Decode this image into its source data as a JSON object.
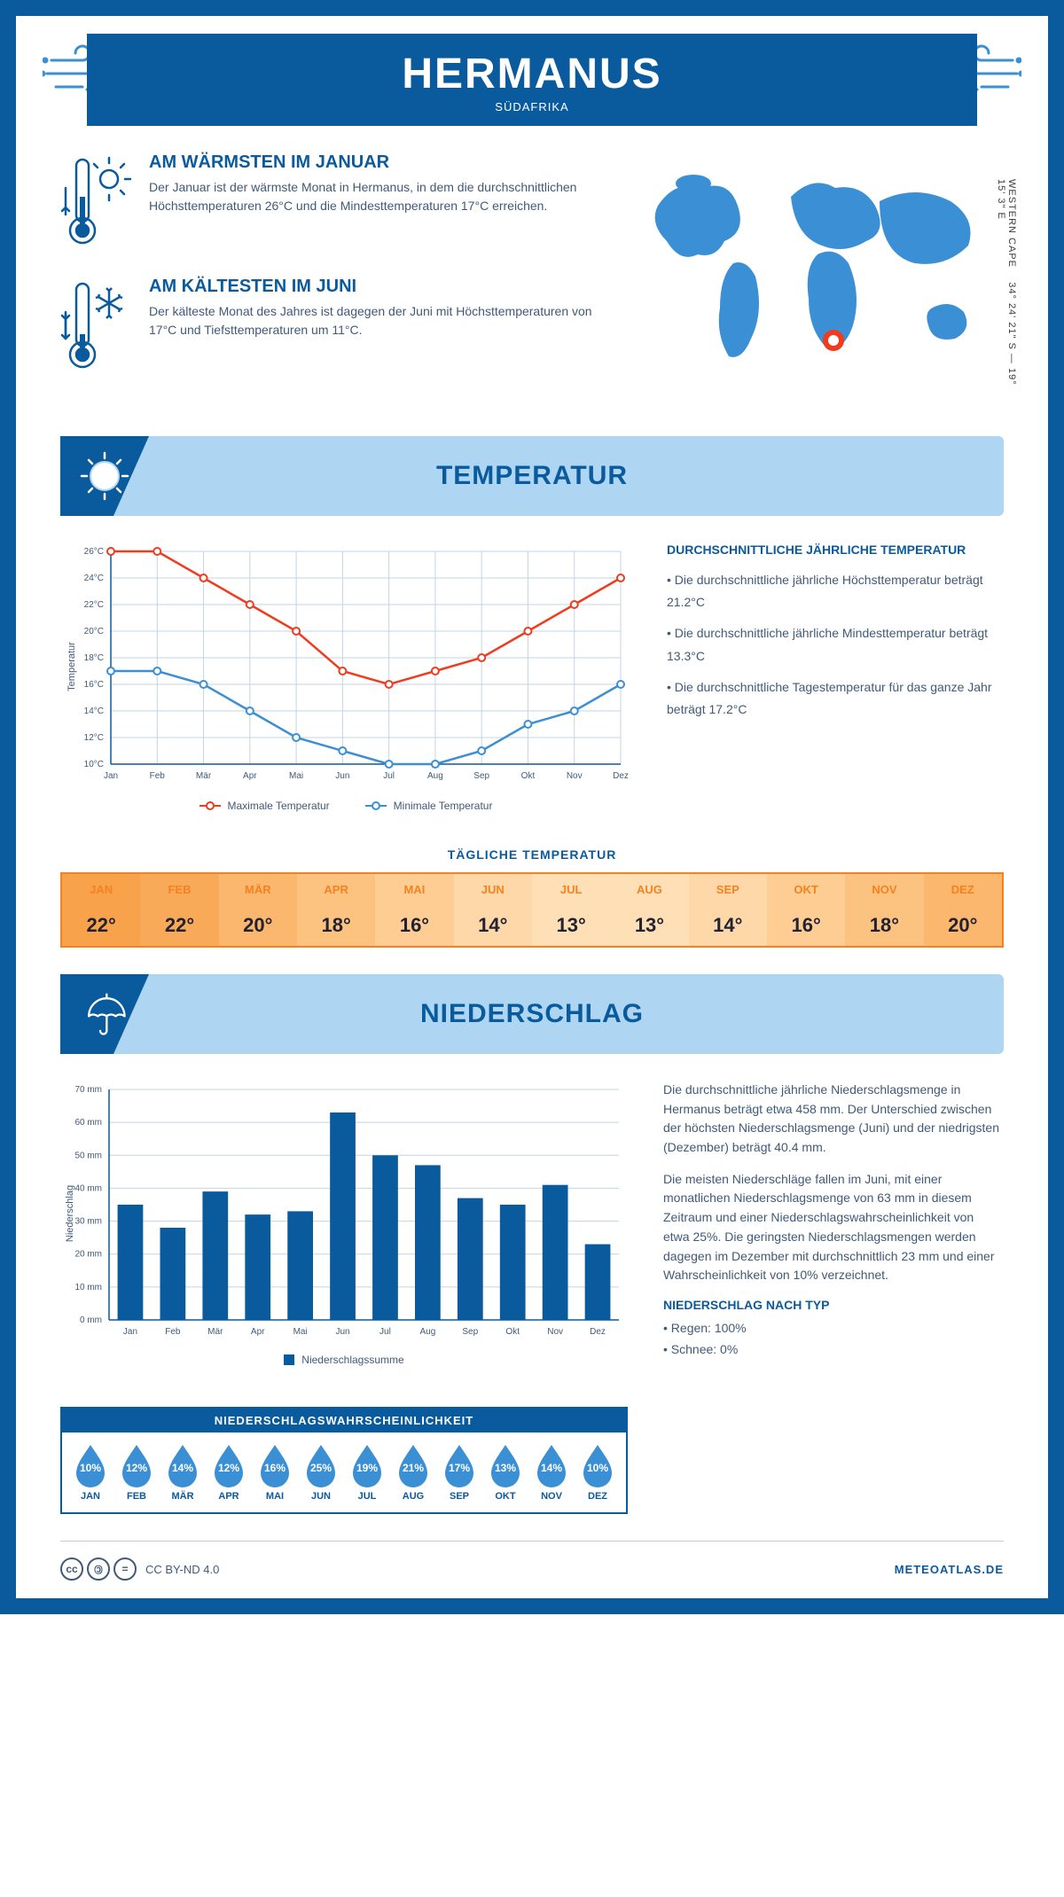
{
  "header": {
    "title": "HERMANUS",
    "subtitle": "SÜDAFRIKA"
  },
  "coords": "34° 24' 21\" S — 19° 15' 3\" E",
  "region": "WESTERN CAPE",
  "facts": {
    "warm": {
      "title": "AM WÄRMSTEN IM JANUAR",
      "text": "Der Januar ist der wärmste Monat in Hermanus, in dem die durchschnittlichen Höchsttemperaturen 26°C und die Mindesttemperaturen 17°C erreichen."
    },
    "cold": {
      "title": "AM KÄLTESTEN IM JUNI",
      "text": "Der kälteste Monat des Jahres ist dagegen der Juni mit Höchsttemperaturen von 17°C und Tiefsttemperaturen um 11°C."
    }
  },
  "map": {
    "marker_color": "#f03c1e",
    "land_color": "#3b8fd4"
  },
  "sections": {
    "temperature": "TEMPERATUR",
    "precip": "NIEDERSCHLAG"
  },
  "temp_chart": {
    "months": [
      "Jan",
      "Feb",
      "Mär",
      "Apr",
      "Mai",
      "Jun",
      "Jul",
      "Aug",
      "Sep",
      "Okt",
      "Nov",
      "Dez"
    ],
    "max": [
      26,
      26,
      24,
      22,
      20,
      17,
      16,
      17,
      18,
      20,
      22,
      24
    ],
    "min": [
      17,
      17,
      16,
      14,
      12,
      11,
      10,
      10,
      11,
      13,
      14,
      16
    ],
    "ylim": [
      10,
      26
    ],
    "ytick_step": 2,
    "max_color": "#f03c1e",
    "min_color": "#3b8fd4",
    "grid_color": "#c3d4e6",
    "axis_color": "#0a5a9e",
    "y_title": "Temperatur",
    "legend_max": "Maximale Temperatur",
    "legend_min": "Minimale Temperatur"
  },
  "temp_side": {
    "title": "DURCHSCHNITTLICHE JÄHRLICHE TEMPERATUR",
    "b1": "• Die durchschnittliche jährliche Höchsttemperatur beträgt 21.2°C",
    "b2": "• Die durchschnittliche jährliche Mindesttemperatur beträgt 13.3°C",
    "b3": "• Die durchschnittliche Tagestemperatur für das ganze Jahr beträgt 17.2°C"
  },
  "daily_temp": {
    "title": "TÄGLICHE TEMPERATUR",
    "months": [
      "JAN",
      "FEB",
      "MÄR",
      "APR",
      "MAI",
      "JUN",
      "JUL",
      "AUG",
      "SEP",
      "OKT",
      "NOV",
      "DEZ"
    ],
    "values": [
      "22°",
      "22°",
      "20°",
      "18°",
      "16°",
      "14°",
      "13°",
      "13°",
      "14°",
      "16°",
      "18°",
      "20°"
    ],
    "bg_colors": [
      "#f8a24b",
      "#f9aa58",
      "#fbb76d",
      "#fcc280",
      "#fdcd94",
      "#fed8a9",
      "#fedfb6",
      "#fedfb6",
      "#fed8a9",
      "#fdcd94",
      "#fcc280",
      "#fbb76d"
    ],
    "border_color": "#f5821f",
    "head_color": "#f5821f"
  },
  "precip_chart": {
    "months": [
      "Jan",
      "Feb",
      "Mär",
      "Apr",
      "Mai",
      "Jun",
      "Jul",
      "Aug",
      "Sep",
      "Okt",
      "Nov",
      "Dez"
    ],
    "values": [
      35,
      28,
      39,
      32,
      33,
      63,
      50,
      47,
      37,
      35,
      41,
      23
    ],
    "ylim": [
      0,
      70
    ],
    "ytick_step": 10,
    "unit": "mm",
    "bar_color": "#0a5a9e",
    "grid_color": "#c3d4e6",
    "y_title": "Niederschlag",
    "legend": "Niederschlagssumme"
  },
  "precip_side": {
    "p1": "Die durchschnittliche jährliche Niederschlagsmenge in Hermanus beträgt etwa 458 mm. Der Unterschied zwischen der höchsten Niederschlagsmenge (Juni) und der niedrigsten (Dezember) beträgt 40.4 mm.",
    "p2": "Die meisten Niederschläge fallen im Juni, mit einer monatlichen Niederschlagsmenge von 63 mm in diesem Zeitraum und einer Niederschlagswahrscheinlichkeit von etwa 25%. Die geringsten Niederschlagsmengen werden dagegen im Dezember mit durchschnittlich 23 mm und einer Wahrscheinlichkeit von 10% verzeichnet.",
    "type_title": "NIEDERSCHLAG NACH TYP",
    "type1": "• Regen: 100%",
    "type2": "• Schnee: 0%"
  },
  "prob": {
    "title": "NIEDERSCHLAGSWAHRSCHEINLICHKEIT",
    "months": [
      "JAN",
      "FEB",
      "MÄR",
      "APR",
      "MAI",
      "JUN",
      "JUL",
      "AUG",
      "SEP",
      "OKT",
      "NOV",
      "DEZ"
    ],
    "values": [
      "10%",
      "12%",
      "14%",
      "12%",
      "16%",
      "25%",
      "19%",
      "21%",
      "17%",
      "13%",
      "14%",
      "10%"
    ],
    "drop_color": "#3b8fd4"
  },
  "footer": {
    "license": "CC BY-ND 4.0",
    "brand": "METEOATLAS.DE"
  }
}
